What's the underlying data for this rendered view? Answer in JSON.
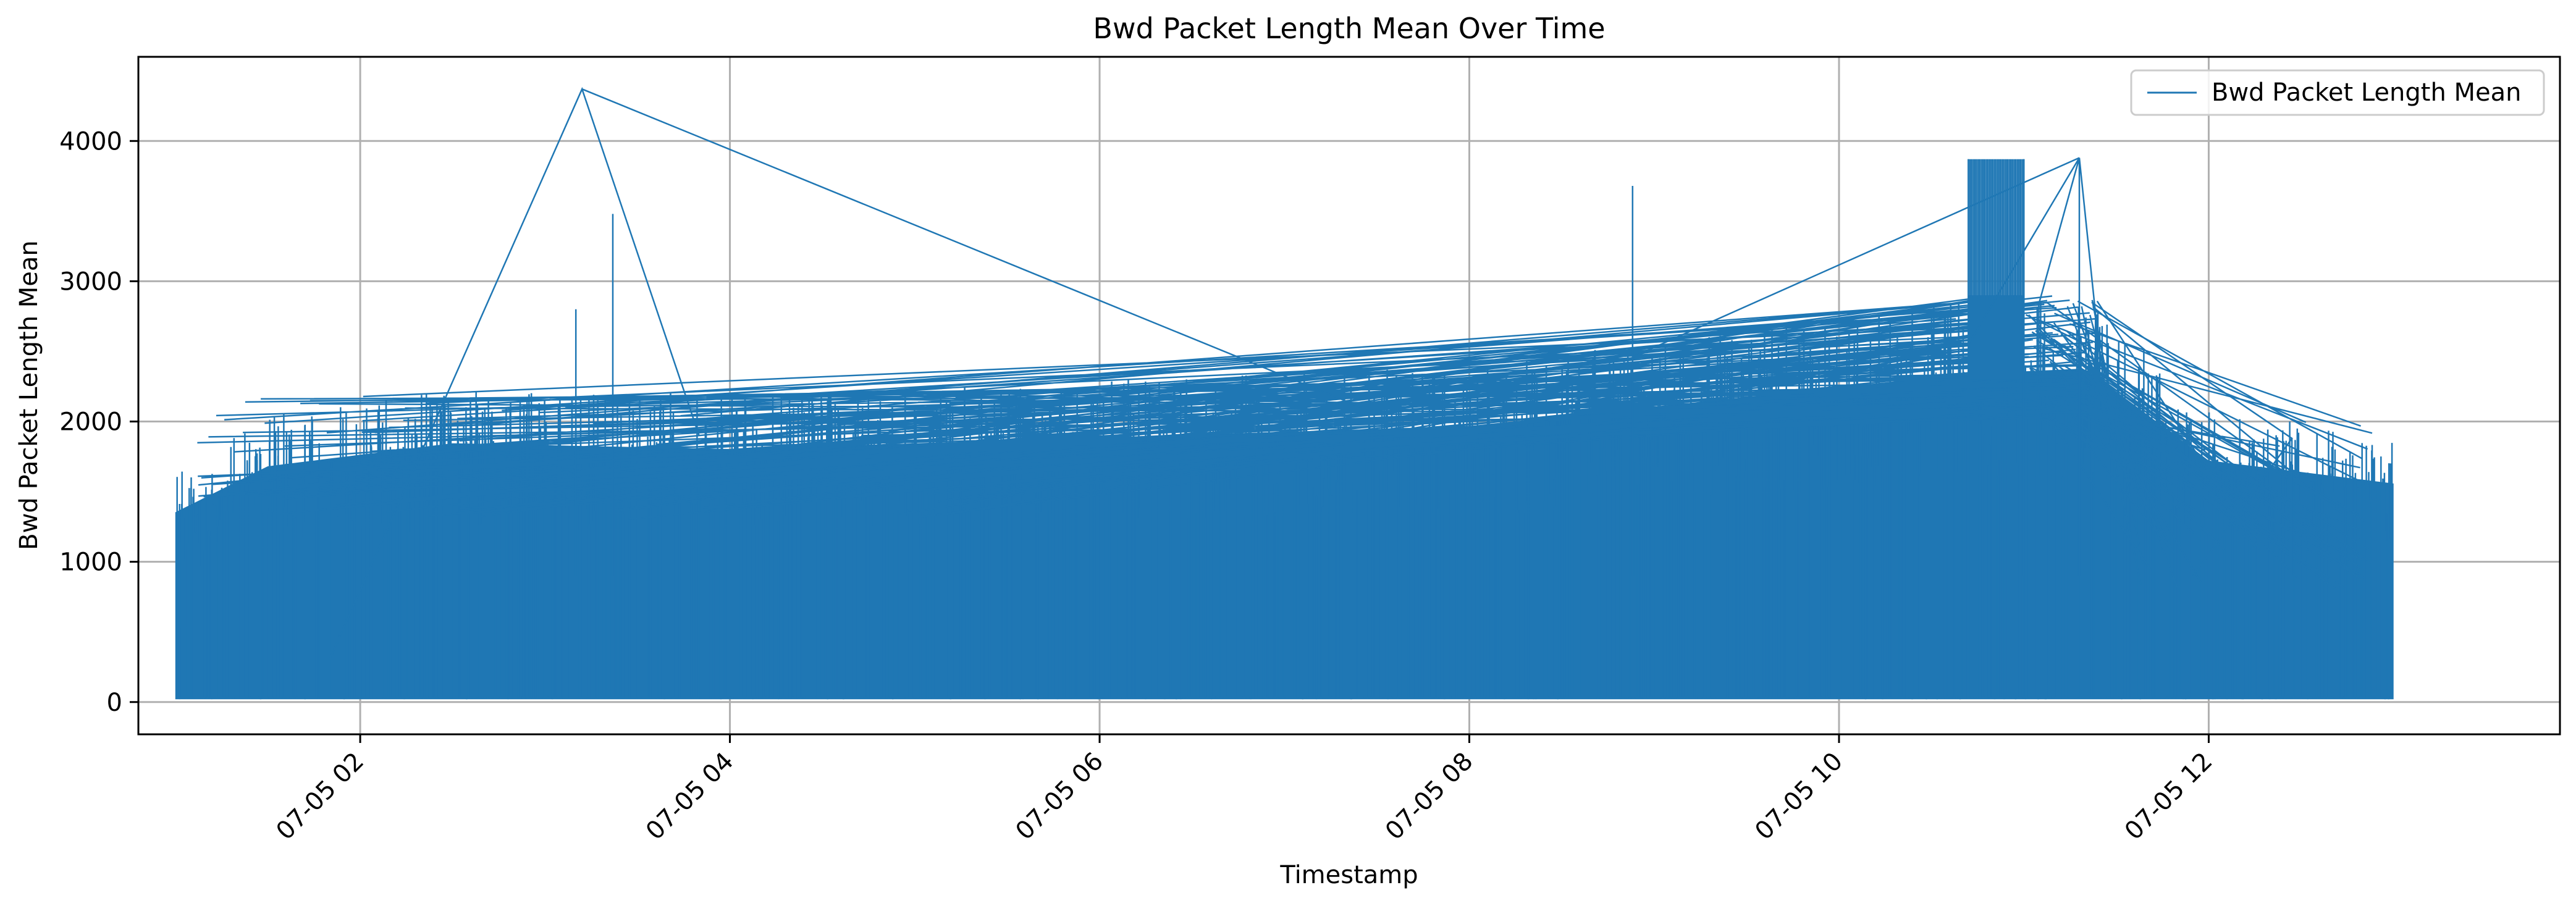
{
  "chart_data": {
    "type": "line",
    "title": "Bwd Packet Length Mean Over Time",
    "xlabel": "Timestamp",
    "ylabel": "Bwd Packet Length Mean",
    "xlim": [
      "07-05 00:48",
      "07-05 13:54"
    ],
    "ylim": [
      -230,
      4600
    ],
    "x_ticks": [
      "07-05 02:00",
      "07-05 04:00",
      "07-05 06:00",
      "07-05 08:00",
      "07-05 10:00",
      "07-05 12:00"
    ],
    "x_tick_labels": [
      "07-05 02",
      "07-05 04",
      "07-05 06",
      "07-05 08",
      "07-05 10",
      "07-05 12"
    ],
    "y_ticks": [
      0,
      1000,
      2000,
      3000,
      4000
    ],
    "y_tick_labels": [
      "0",
      "1000",
      "2000",
      "3000",
      "4000"
    ],
    "grid": true,
    "legend_position": "top-right",
    "series": [
      {
        "name": "Bwd Packet Length Mean",
        "color": "#1f77b4",
        "start": "07-05 01:00",
        "end": "07-05 13:00",
        "dense_envelope": [
          {
            "t": "07-05 01:00",
            "lo": 20,
            "hi": 1650
          },
          {
            "t": "07-05 01:30",
            "lo": 20,
            "hi": 2050
          },
          {
            "t": "07-05 02:30",
            "lo": 20,
            "hi": 2250
          },
          {
            "t": "07-05 04:00",
            "lo": 20,
            "hi": 2200
          },
          {
            "t": "07-05 05:00",
            "lo": 20,
            "hi": 2250
          },
          {
            "t": "07-05 08:00",
            "lo": 20,
            "hi": 2400
          },
          {
            "t": "07-05 10:40",
            "lo": 20,
            "hi": 2850
          },
          {
            "t": "07-05 11:20",
            "lo": 20,
            "hi": 2900
          },
          {
            "t": "07-05 12:00",
            "lo": 20,
            "hi": 2100
          },
          {
            "t": "07-05 13:00",
            "lo": 20,
            "hi": 1900
          }
        ],
        "notable_points": [
          {
            "t": "07-05 03:12",
            "y": 4370
          },
          {
            "t": "07-05 03:22",
            "y": 3480
          },
          {
            "t": "07-05 03:10",
            "y": 2800
          },
          {
            "t": "07-05 08:53",
            "y": 3680
          },
          {
            "t": "07-05 10:42",
            "y": 3870
          },
          {
            "t": "07-05 11:00",
            "y": 3870
          },
          {
            "t": "07-05 11:18",
            "y": 3880
          },
          {
            "t": "07-05 12:27",
            "y": 1880
          }
        ],
        "burst_region": {
          "start": "07-05 10:42",
          "end": "07-05 11:00",
          "y": 3870
        }
      }
    ]
  }
}
